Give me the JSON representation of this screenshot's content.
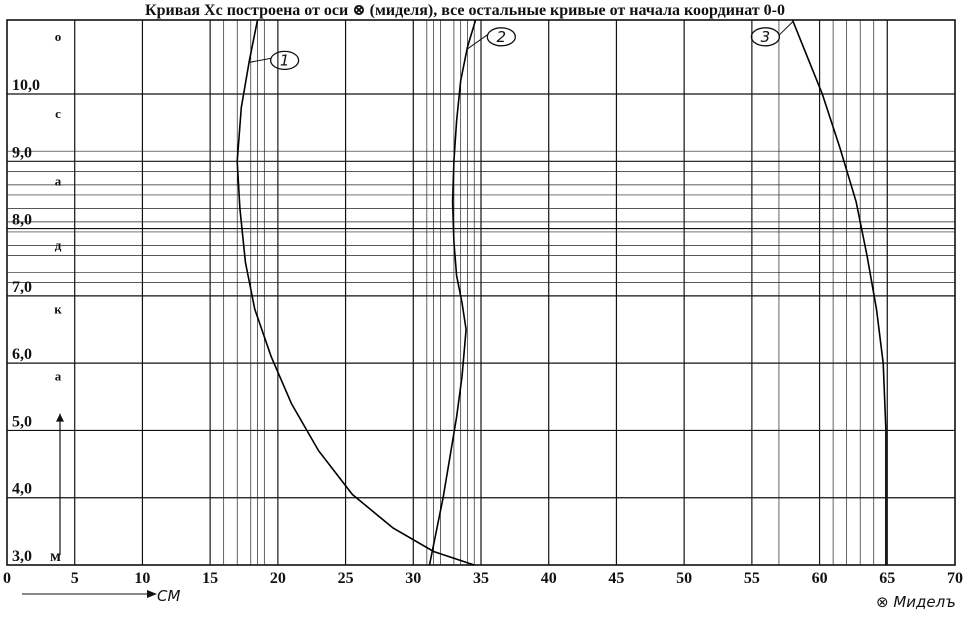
{
  "chart_data": {
    "type": "line",
    "title": "Кривая  Xc построена от оси ⊗ (миделя), все остальные кривые от начала координат 0-0",
    "x_ticks": [
      "0",
      "5",
      "10",
      "15",
      "20",
      "25",
      "30",
      "35",
      "40",
      "45",
      "50",
      "55",
      "60",
      "65",
      "70"
    ],
    "y_ticks": [
      "3,0",
      "4,0",
      "5,0",
      "6,0",
      "7,0",
      "8,0",
      "9,0",
      "10,0"
    ],
    "y_tick_suffix": "м",
    "xlim": [
      0,
      70
    ],
    "ylim": [
      3.0,
      11.1
    ],
    "x_unit_label": "СМ",
    "midship_label": "⊗ Миделъ",
    "vertical_word_letters": [
      "о",
      "с",
      "а",
      "д",
      "к",
      "а"
    ],
    "grid": true,
    "series": [
      {
        "name": "1",
        "points": [
          [
            34.5,
            3.0
          ],
          [
            31.5,
            3.2
          ],
          [
            28.5,
            3.55
          ],
          [
            25.5,
            4.05
          ],
          [
            23.0,
            4.7
          ],
          [
            21.0,
            5.4
          ],
          [
            19.5,
            6.1
          ],
          [
            18.3,
            6.8
          ],
          [
            17.6,
            7.5
          ],
          [
            17.2,
            8.3
          ],
          [
            17.0,
            9.0
          ],
          [
            17.3,
            9.8
          ],
          [
            17.9,
            10.5
          ],
          [
            18.5,
            11.1
          ]
        ]
      },
      {
        "name": "2",
        "points": [
          [
            31.2,
            3.0
          ],
          [
            31.7,
            3.5
          ],
          [
            32.2,
            4.0
          ],
          [
            32.7,
            4.6
          ],
          [
            33.2,
            5.2
          ],
          [
            33.6,
            5.8
          ],
          [
            33.9,
            6.5
          ],
          [
            33.6,
            6.9
          ],
          [
            33.2,
            7.3
          ],
          [
            33.0,
            7.8
          ],
          [
            32.9,
            8.4
          ],
          [
            33.0,
            9.0
          ],
          [
            33.2,
            9.6
          ],
          [
            33.5,
            10.2
          ],
          [
            34.0,
            10.7
          ],
          [
            34.6,
            11.1
          ]
        ]
      },
      {
        "name": "3",
        "points": [
          [
            58.0,
            11.1
          ],
          [
            59.0,
            10.6
          ],
          [
            60.2,
            10.0
          ],
          [
            61.5,
            9.2
          ],
          [
            62.7,
            8.4
          ],
          [
            63.5,
            7.6
          ],
          [
            64.2,
            6.8
          ],
          [
            64.7,
            6.0
          ],
          [
            64.9,
            5.0
          ],
          [
            64.9,
            4.0
          ],
          [
            64.9,
            3.0
          ]
        ]
      }
    ],
    "curve_labels": [
      {
        "series": "1",
        "text": "1",
        "at": [
          20.5,
          10.5
        ]
      },
      {
        "series": "2",
        "text": "2",
        "at": [
          36.5,
          10.85
        ]
      },
      {
        "series": "3",
        "text": "3",
        "at": [
          56.0,
          10.85
        ]
      }
    ],
    "thin_vertical_lines_x": [
      15,
      16,
      17,
      18,
      18.5,
      19,
      20,
      31,
      31.5,
      32,
      33,
      33.5,
      34,
      34.5,
      55,
      57,
      60,
      61,
      62,
      63,
      64,
      65
    ],
    "thin_horizontal_lines_y": [
      7.2,
      7.35,
      7.6,
      7.75,
      7.95,
      8.1,
      8.3,
      8.5,
      8.65,
      8.85,
      9.0,
      9.15
    ]
  }
}
